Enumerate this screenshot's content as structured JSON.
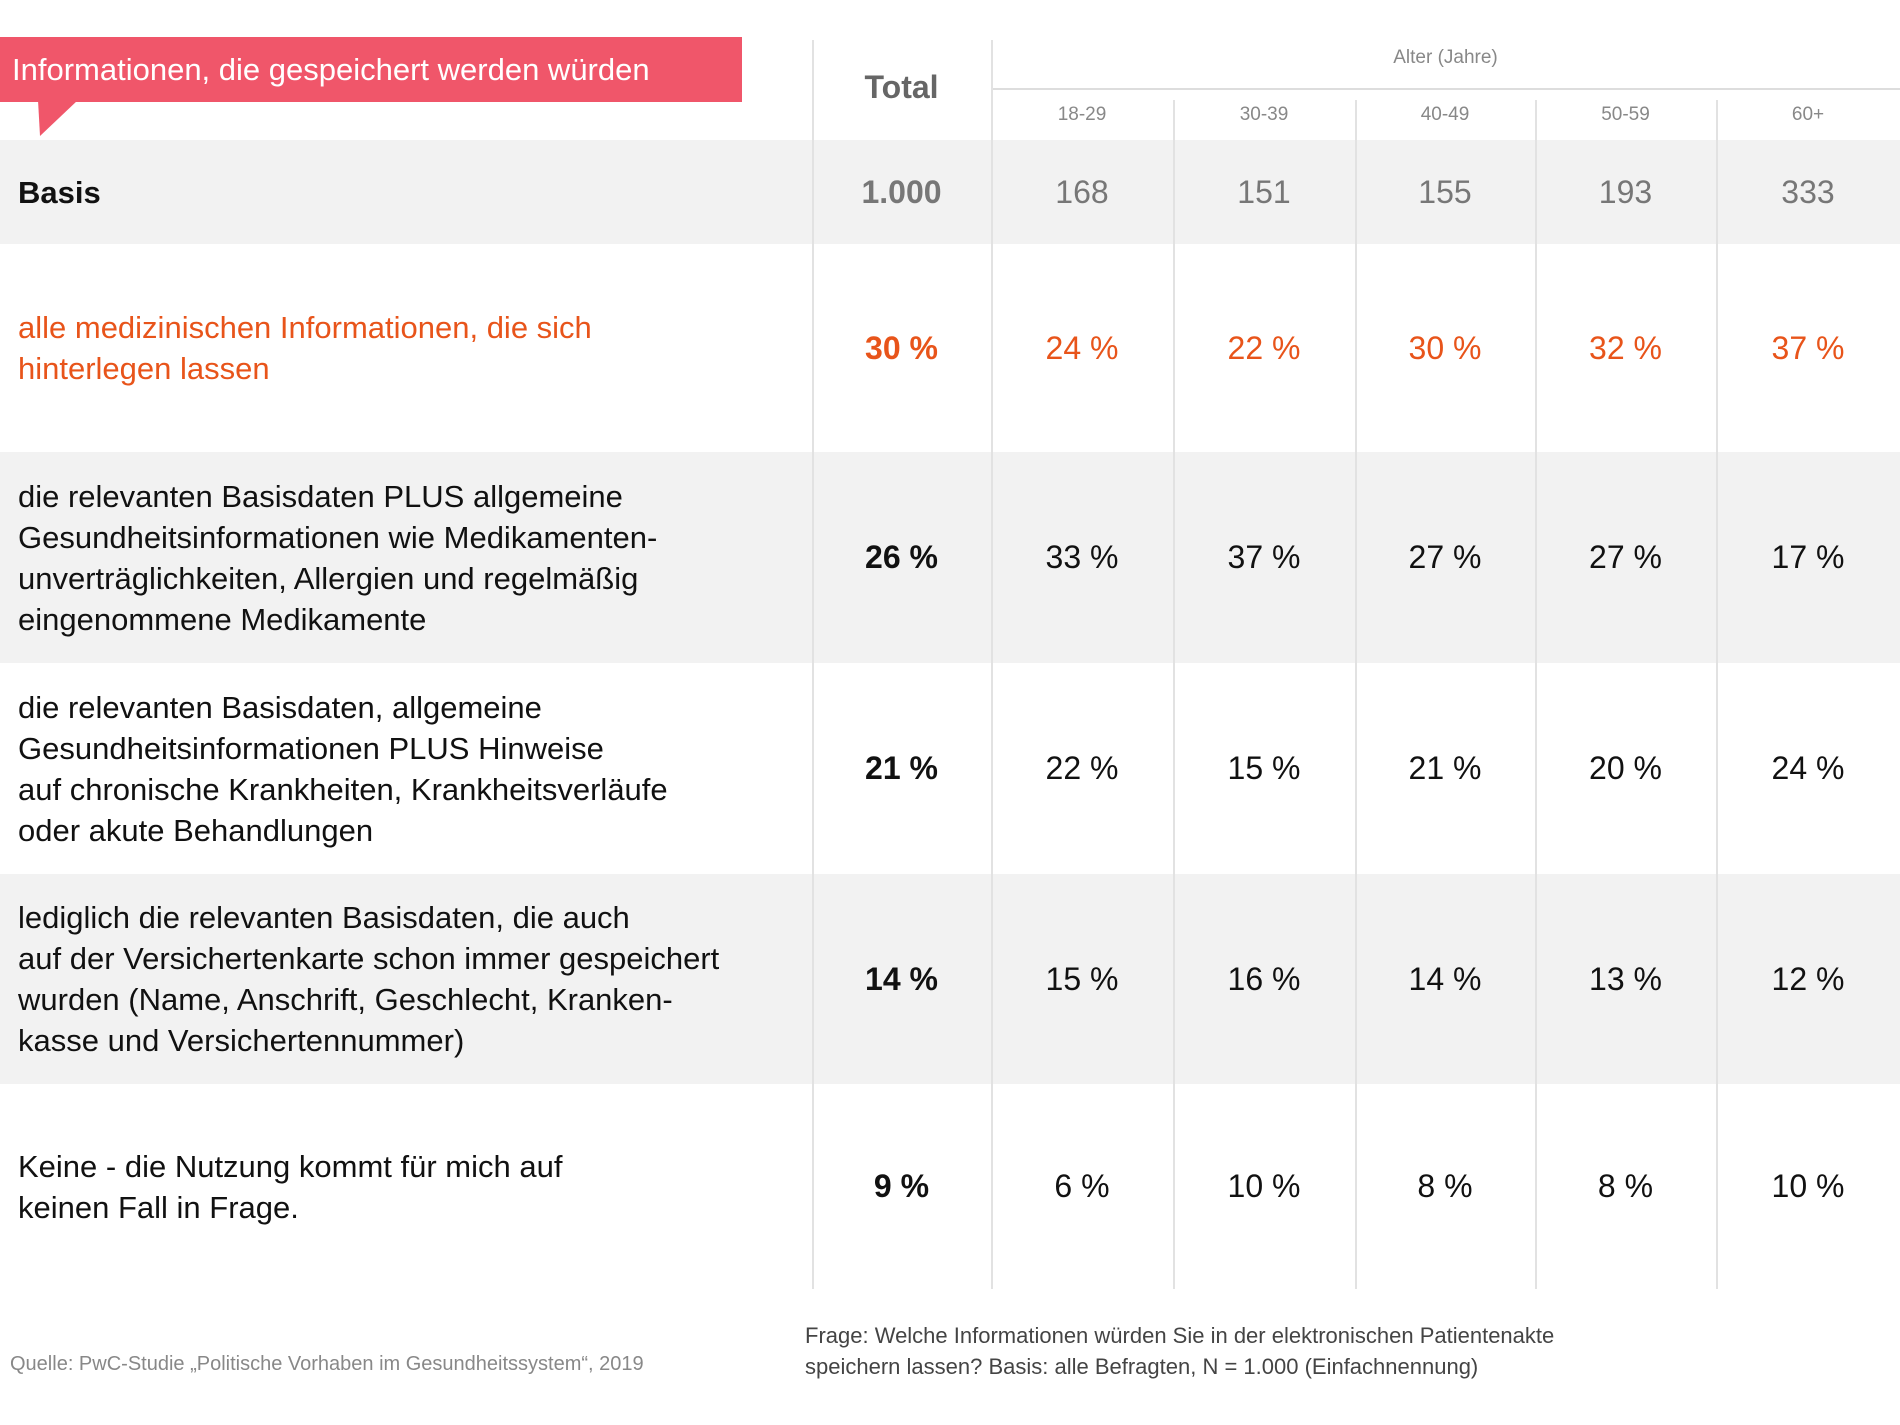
{
  "header": {
    "tag": "Informationen, die gespeichert werden würden",
    "total": "Total",
    "age_group": "Alter (Jahre)",
    "ages": [
      "18-29",
      "30-39",
      "40-49",
      "50-59",
      "60+"
    ]
  },
  "table": {
    "rows": [
      {
        "label": "Basis",
        "total": "1.000",
        "values": [
          "168",
          "151",
          "155",
          "193",
          "333"
        ]
      },
      {
        "label": "alle medizinischen Informationen, die sich\nhinterlegen lassen",
        "total": "30 %",
        "values": [
          "24 %",
          "22 %",
          "30 %",
          "32 %",
          "37 %"
        ],
        "color": "#e8541a"
      },
      {
        "label": "die relevanten Basisdaten PLUS allgemeine\nGesundheitsinformationen wie Medikamenten-\nunverträglichkeiten, Allergien und regelmäßig\neingenommene Medikamente",
        "total": "26 %",
        "values": [
          "33 %",
          "37 %",
          "27 %",
          "27 %",
          "17 %"
        ]
      },
      {
        "label": "die relevanten Basisdaten, allgemeine\nGesundheitsinformationen PLUS Hinweise\nauf chronische Krankheiten, Krankheitsverläufe\noder akute Behandlungen",
        "total": "21 %",
        "values": [
          "22 %",
          "15 %",
          "21 %",
          "20 %",
          "24 %"
        ]
      },
      {
        "label": "lediglich die relevanten Basisdaten, die auch\nauf der Versichertenkarte schon immer gespeichert\nwurden (Name, Anschrift, Geschlecht, Kranken-\nkasse und Versichertennummer)",
        "total": "14 %",
        "values": [
          "15 %",
          "16 %",
          "14 %",
          "13 %",
          "12 %"
        ]
      },
      {
        "label": "Keine - die Nutzung kommt für mich auf\nkeinen Fall in Frage.",
        "total": "9 %",
        "values": [
          "6 %",
          "10 %",
          "8 %",
          "8 %",
          "10 %"
        ]
      }
    ]
  },
  "footer": {
    "source": "Quelle: PwC-Studie „Politische Vorhaben im Gesundheitssystem“, 2019",
    "question": "Frage: Welche Informationen würden Sie in der elektronischen Patientenakte\nspeichern lassen? Basis: alle Befragten, N = 1.000 (Einfachnennung)"
  }
}
